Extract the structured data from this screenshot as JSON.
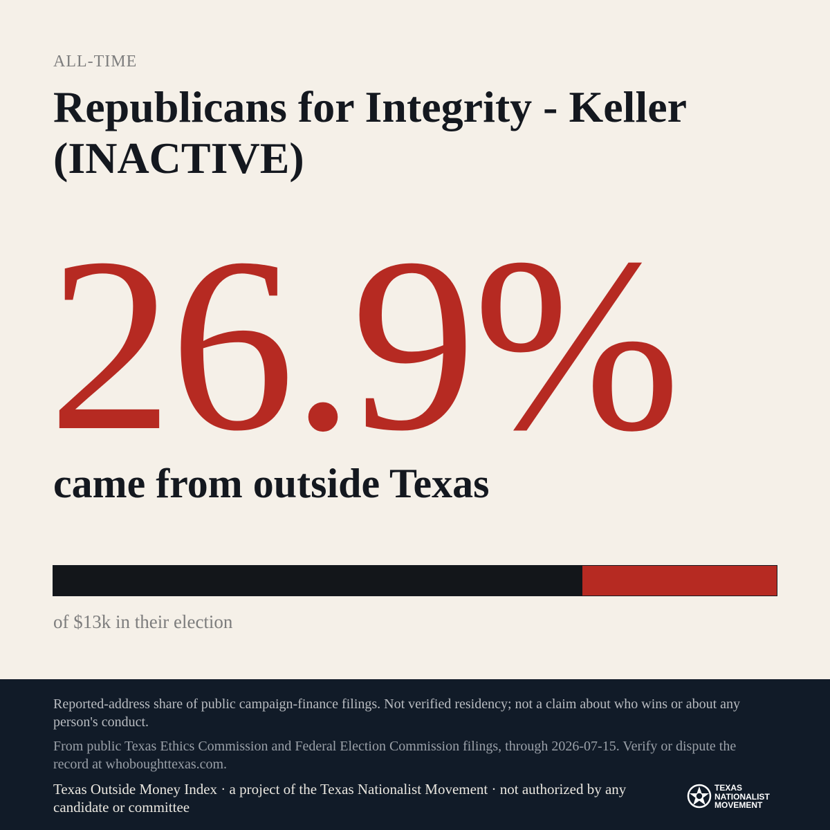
{
  "header": {
    "kicker": "ALL-TIME",
    "title": "Republicans for Integrity - Keller (INACTIVE)"
  },
  "headline": {
    "percent": "26.9%",
    "subtitle": "came from outside Texas"
  },
  "progress": {
    "outside_share": 26.9,
    "caption": "of $13k in their election",
    "colors": {
      "inside": "#13161a",
      "outside": "#b62a22"
    }
  },
  "footer": {
    "note1": "Reported-address share of public campaign-finance filings. Not verified residency; not a claim about who wins or about any person's conduct.",
    "note2": "From public Texas Ethics Commission and Federal Election Commission filings, through 2026-07-15. Verify or dispute the record at whoboughttexas.com.",
    "credit": "Texas Outside Money Index · a project of the Texas Nationalist Movement · not authorized by any candidate or committee",
    "logo": {
      "icon": "star-seal-icon",
      "line1": "TEXAS",
      "line2": "NATIONALIST",
      "line3": "MOVEMENT"
    }
  },
  "colors": {
    "background": "#f5f0e8",
    "accent": "#b62a22",
    "ink": "#14181f",
    "footer_bg": "#111b28"
  }
}
